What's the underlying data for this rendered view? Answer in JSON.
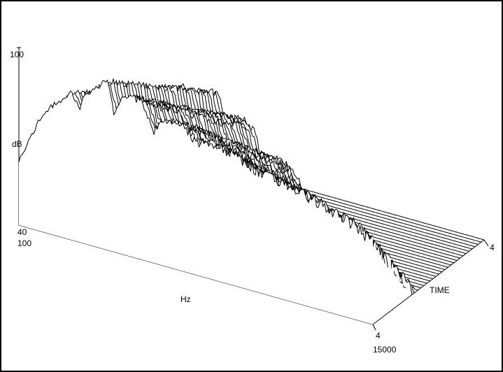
{
  "chart_data": {
    "type": "waterfall",
    "xlabel": "Hz",
    "ylabel": "dB",
    "zlabel": "TIME",
    "x_ticks": [
      "100",
      "15000"
    ],
    "y_ticks": [
      "40",
      "100"
    ],
    "z_ticks": [
      "4",
      "4"
    ],
    "x_range": [
      100,
      15000
    ],
    "y_range": [
      40,
      100
    ],
    "slices": 38,
    "base_response": [
      [
        0.0,
        62
      ],
      [
        0.03,
        70
      ],
      [
        0.06,
        78
      ],
      [
        0.09,
        83
      ],
      [
        0.12,
        86
      ],
      [
        0.15,
        90
      ],
      [
        0.17,
        85
      ],
      [
        0.19,
        91
      ],
      [
        0.22,
        94
      ],
      [
        0.25,
        97
      ],
      [
        0.27,
        86
      ],
      [
        0.29,
        92
      ],
      [
        0.32,
        94
      ],
      [
        0.35,
        93
      ],
      [
        0.38,
        84
      ],
      [
        0.4,
        88
      ],
      [
        0.43,
        90
      ],
      [
        0.46,
        89
      ],
      [
        0.5,
        85
      ],
      [
        0.55,
        86
      ],
      [
        0.6,
        84
      ],
      [
        0.65,
        82
      ],
      [
        0.7,
        80
      ],
      [
        0.75,
        79
      ],
      [
        0.8,
        78
      ],
      [
        0.85,
        76
      ],
      [
        0.9,
        74
      ],
      [
        0.95,
        72
      ],
      [
        1.0,
        68
      ]
    ],
    "decay_db_per_slice": 1.4,
    "grid": false
  }
}
